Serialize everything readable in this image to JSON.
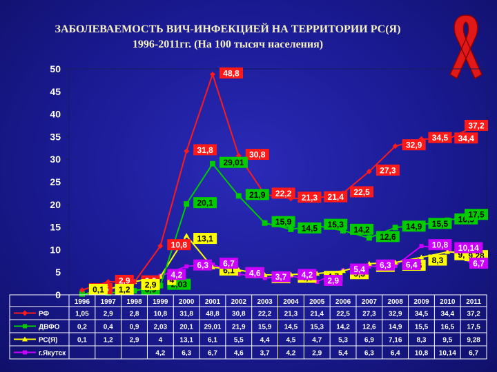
{
  "title": {
    "line1": "ЗАБОЛЕВАЕМОСТЬ ВИЧ-ИНФЕКЦИЕЙ НА ТЕРРИТОРИИ РС(Я)",
    "line2": "1996-2011гг. (На 100 тысяч населения)"
  },
  "ribbon_icon": "red-awareness-ribbon",
  "colors": {
    "background": "#1b1a8f",
    "rf": "#ff1a1a",
    "dvfo": "#00cc00",
    "rsya": "#ffff00",
    "yakutsk": "#cc00ff"
  },
  "chart_data": {
    "type": "line",
    "ylim": [
      0,
      50
    ],
    "yticks": [
      "0",
      "5",
      "10",
      "15",
      "20",
      "25",
      "30",
      "35",
      "40",
      "45",
      "50"
    ],
    "categories": [
      "1996",
      "1997",
      "1998",
      "1999",
      "2000",
      "2001",
      "2002",
      "2003",
      "2004",
      "2005",
      "2006",
      "2007",
      "2008",
      "2009",
      "2010",
      "2011"
    ],
    "grid": false,
    "legend": "table-below",
    "series": [
      {
        "name": "РФ",
        "color": "#ff1a1a",
        "marker": "diamond",
        "values": [
          1.05,
          2.9,
          2.8,
          10.8,
          31.8,
          48.8,
          30.8,
          22.2,
          21.3,
          21.4,
          22.5,
          27.3,
          32.9,
          34.5,
          34.4,
          37.2
        ],
        "labels": [
          "1,05",
          "2,9",
          "2,8",
          "10,8",
          "31,8",
          "48,8",
          "30,8",
          "22,2",
          "21,3",
          "21,4",
          "22,5",
          "27,3",
          "32,9",
          "34,5",
          "34,4",
          "37,2"
        ]
      },
      {
        "name": "ДВФО",
        "color": "#00cc00",
        "marker": "square",
        "values": [
          0.2,
          0.4,
          0.9,
          2.03,
          20.1,
          29.01,
          21.9,
          15.9,
          14.5,
          15.3,
          14.2,
          12.6,
          14.9,
          15.5,
          16.5,
          17.5
        ],
        "labels": [
          "0,2",
          "0,4",
          "0,9",
          "2,03",
          "20,1",
          "29,01",
          "21,9",
          "15,9",
          "14,5",
          "15,3",
          "14,2",
          "12,6",
          "14,9",
          "15,5",
          "16,5",
          "17,5"
        ]
      },
      {
        "name": "РС(Я)",
        "color": "#ffff00",
        "marker": "triangle",
        "values": [
          0.1,
          1.2,
          2.9,
          4,
          13.1,
          6.1,
          5.5,
          4.4,
          4.5,
          4.7,
          5.3,
          6.9,
          7.16,
          8.3,
          9.5,
          9.28
        ],
        "labels": [
          "0,1",
          "1,2",
          "2,9",
          "4",
          "13,1",
          "6,1",
          "5,5",
          "4,4",
          "4,5",
          "4,7",
          "5,3",
          "6,9",
          "7,16",
          "8,3",
          "9,5",
          "9,28"
        ]
      },
      {
        "name": "г.Якутск",
        "color": "#cc00ff",
        "marker": "square",
        "values": [
          null,
          null,
          null,
          4.2,
          6.3,
          6.7,
          4.6,
          3.7,
          4.2,
          2.9,
          5.4,
          6.3,
          6.4,
          10.8,
          10.14,
          6.7
        ],
        "labels": [
          "",
          "",
          "",
          "4,2",
          "6,3",
          "6,7",
          "4,6",
          "3,7",
          "4,2",
          "2,9",
          "5,4",
          "6,3",
          "6,4",
          "10,8",
          "10,14",
          "6,7"
        ]
      }
    ]
  }
}
